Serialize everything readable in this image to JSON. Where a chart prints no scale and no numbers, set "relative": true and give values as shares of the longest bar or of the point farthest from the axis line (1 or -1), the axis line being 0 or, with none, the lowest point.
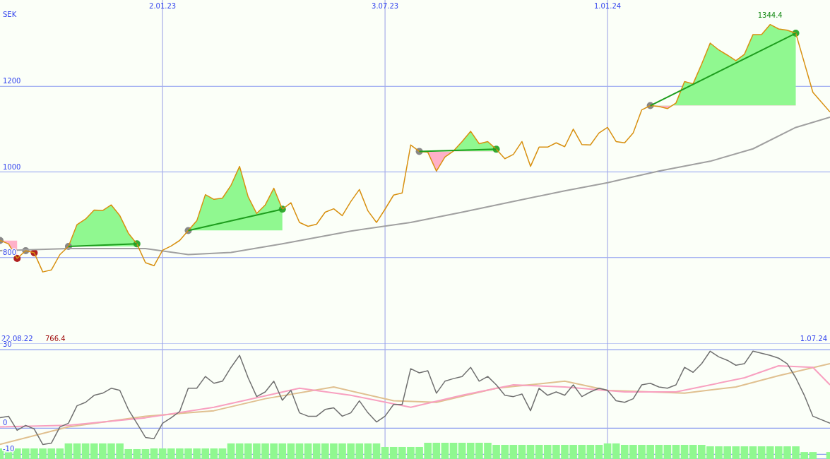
{
  "chart_data": [
    {
      "type": "line",
      "ylabel": "SEK",
      "xlim": [
        "2022-08-22",
        "2024-07-01"
      ],
      "ylim": [
        600,
        1400
      ],
      "yticks": [
        800,
        1000,
        1200
      ],
      "xticks": [
        {
          "value": "2023-01-02",
          "label": "2.01.23"
        },
        {
          "value": "2023-07-03",
          "label": "3.07.23"
        },
        {
          "value": "2024-01-01",
          "label": "1.01.24"
        }
      ],
      "grid": true,
      "annotations": [
        "22.08.22",
        "766.4",
        "1.07.24",
        {
          "text": "1344.4",
          "x": "2024-05-13",
          "y": 1344.4
        }
      ],
      "x": [
        "2022-08-22",
        "2022-08-29",
        "2022-09-05",
        "2022-09-12",
        "2022-09-19",
        "2022-09-26",
        "2022-10-03",
        "2022-10-10",
        "2022-10-17",
        "2022-10-24",
        "2022-10-31",
        "2022-11-07",
        "2022-11-14",
        "2022-11-21",
        "2022-11-28",
        "2022-12-05",
        "2022-12-12",
        "2022-12-19",
        "2022-12-26",
        "2023-01-02",
        "2023-01-09",
        "2023-01-16",
        "2023-01-23",
        "2023-01-30",
        "2023-02-06",
        "2023-02-13",
        "2023-02-20",
        "2023-02-27",
        "2023-03-06",
        "2023-03-13",
        "2023-03-20",
        "2023-03-27",
        "2023-04-03",
        "2023-04-10",
        "2023-04-17",
        "2023-04-24",
        "2023-05-01",
        "2023-05-08",
        "2023-05-15",
        "2023-05-22",
        "2023-05-29",
        "2023-06-05",
        "2023-06-12",
        "2023-06-19",
        "2023-06-26",
        "2023-07-03",
        "2023-07-10",
        "2023-07-17",
        "2023-07-24",
        "2023-07-31",
        "2023-08-07",
        "2023-08-14",
        "2023-08-21",
        "2023-08-28",
        "2023-09-04",
        "2023-09-11",
        "2023-09-18",
        "2023-09-25",
        "2023-10-02",
        "2023-10-09",
        "2023-10-16",
        "2023-10-23",
        "2023-10-30",
        "2023-11-06",
        "2023-11-13",
        "2023-11-20",
        "2023-11-27",
        "2023-12-04",
        "2023-12-11",
        "2023-12-18",
        "2023-12-25",
        "2024-01-01",
        "2024-01-08",
        "2024-01-15",
        "2024-01-22",
        "2024-01-29",
        "2024-02-05",
        "2024-02-12",
        "2024-02-19",
        "2024-02-26",
        "2024-03-04",
        "2024-03-11",
        "2024-03-18",
        "2024-03-25",
        "2024-04-01",
        "2024-04-08",
        "2024-04-15",
        "2024-04-22",
        "2024-04-29",
        "2024-05-06",
        "2024-05-13",
        "2024-05-20",
        "2024-05-27",
        "2024-06-03",
        "2024-06-10",
        "2024-06-17",
        "2024-07-01"
      ],
      "series": [
        {
          "type": "line",
          "color": "#a0a0a0",
          "x": [
            "2022-08-22",
            "2022-10-17",
            "2022-12-19",
            "2023-01-23",
            "2023-02-27",
            "2023-04-10",
            "2023-06-05",
            "2023-07-24",
            "2023-09-04",
            "2023-10-16",
            "2023-11-27",
            "2024-01-01",
            "2024-02-12",
            "2024-03-25",
            "2024-04-29",
            "2024-06-03",
            "2024-07-01"
          ],
          "values": [
            816,
            821,
            821,
            807,
            812,
            832,
            862,
            882,
            906,
            931,
            956,
            975,
            1002,
            1025,
            1054,
            1104,
            1128
          ]
        },
        {
          "color": "#d89010",
          "values": [
            840,
            832,
            798,
            816,
            811,
            766.4,
            771,
            807,
            826,
            877,
            890,
            911,
            910,
            923,
            898,
            857,
            832,
            788,
            781,
            817,
            827,
            840,
            863,
            886,
            947,
            936,
            939,
            969,
            1013,
            942,
            903,
            923,
            962,
            913,
            928,
            882,
            873,
            878,
            906,
            914,
            898,
            931,
            959,
            909,
            882,
            913,
            946,
            951,
            1063,
            1048,
            1046,
            1002,
            1035,
            1049,
            1071,
            1095,
            1066,
            1071,
            1053,
            1031,
            1041,
            1071,
            1013,
            1058,
            1058,
            1068,
            1059,
            1100,
            1064,
            1063,
            1091,
            1104,
            1071,
            1068,
            1091,
            1145,
            1155,
            1153,
            1148,
            1161,
            1211,
            1206,
            1252,
            1301,
            1285,
            1273,
            1260,
            1275,
            1321,
            1321,
            1344.4,
            1334,
            1331,
            1324,
            1255,
            1186,
            1140
          ]
        },
        {
          "type": "line",
          "color": "#1e9e1e",
          "x": [
            "2022-10-17",
            "2022-12-12",
            "2022-12-19",
            "2023-01-23",
            "2023-04-10",
            "2023-04-17",
            "2023-07-31",
            "2023-10-02",
            "2023-10-09",
            "2024-02-05",
            "2024-06-03"
          ],
          "values": [
            826,
            832,
            null,
            863,
            913,
            null,
            1048,
            1053,
            null,
            1155,
            1324
          ]
        },
        {
          "type": "scatter",
          "color": "#888888",
          "x": [
            "2022-08-22",
            "2022-09-12",
            "2022-10-17",
            "2023-01-23",
            "2023-07-31",
            "2024-02-05"
          ],
          "values": [
            840,
            816,
            826,
            863,
            1048,
            1155
          ]
        },
        {
          "type": "scatter",
          "color": "#33aa33",
          "x": [
            "2022-12-12",
            "2023-04-10",
            "2023-10-02",
            "2024-06-03"
          ],
          "values": [
            832,
            913,
            1053,
            1324
          ]
        },
        {
          "type": "scatter",
          "color": "#b02020",
          "x": [
            "2022-09-05",
            "2022-09-19"
          ],
          "values": [
            798,
            811
          ]
        }
      ]
    },
    {
      "type": "line",
      "xlim": [
        "2022-08-22",
        "2024-07-01"
      ],
      "ylim": [
        -11.5,
        32
      ],
      "yticks": [
        -10,
        0,
        30
      ],
      "xticks": [
        "2023-01-02",
        "2023-07-03",
        "2024-01-01"
      ],
      "grid": true,
      "tick_labels": "y",
      "x": [
        "2022-08-22",
        "2022-08-29",
        "2022-09-05",
        "2022-09-12",
        "2022-09-19",
        "2022-09-26",
        "2022-10-03",
        "2022-10-10",
        "2022-10-17",
        "2022-10-24",
        "2022-10-31",
        "2022-11-07",
        "2022-11-14",
        "2022-11-21",
        "2022-11-28",
        "2022-12-05",
        "2022-12-12",
        "2022-12-19",
        "2022-12-26",
        "2023-01-02",
        "2023-01-09",
        "2023-01-16",
        "2023-01-23",
        "2023-01-30",
        "2023-02-06",
        "2023-02-13",
        "2023-02-20",
        "2023-02-27",
        "2023-03-06",
        "2023-03-13",
        "2023-03-20",
        "2023-03-27",
        "2023-04-03",
        "2023-04-10",
        "2023-04-17",
        "2023-04-24",
        "2023-05-01",
        "2023-05-08",
        "2023-05-15",
        "2023-05-22",
        "2023-05-29",
        "2023-06-05",
        "2023-06-12",
        "2023-06-19",
        "2023-06-26",
        "2023-07-03",
        "2023-07-10",
        "2023-07-17",
        "2023-07-24",
        "2023-07-31",
        "2023-08-07",
        "2023-08-14",
        "2023-08-21",
        "2023-08-28",
        "2023-09-04",
        "2023-09-11",
        "2023-09-18",
        "2023-09-25",
        "2023-10-02",
        "2023-10-09",
        "2023-10-16",
        "2023-10-23",
        "2023-10-30",
        "2023-11-06",
        "2023-11-13",
        "2023-11-20",
        "2023-11-27",
        "2023-12-04",
        "2023-12-11",
        "2023-12-18",
        "2023-12-25",
        "2024-01-01",
        "2024-01-08",
        "2024-01-15",
        "2024-01-22",
        "2024-01-29",
        "2024-02-05",
        "2024-02-12",
        "2024-02-19",
        "2024-02-26",
        "2024-03-04",
        "2024-03-11",
        "2024-03-18",
        "2024-03-25",
        "2024-04-01",
        "2024-04-08",
        "2024-04-15",
        "2024-04-22",
        "2024-04-29",
        "2024-05-06",
        "2024-05-13",
        "2024-05-20",
        "2024-05-27",
        "2024-06-03",
        "2024-06-10",
        "2024-06-17",
        "2024-07-01"
      ],
      "series": [
        {
          "type": "line",
          "color": "#e0c090",
          "x": [
            "2022-08-22",
            "2022-10-17",
            "2022-12-19",
            "2023-02-13",
            "2023-03-27",
            "2023-05-22",
            "2023-07-10",
            "2023-08-14",
            "2023-10-02",
            "2023-11-27",
            "2024-01-01",
            "2024-03-04",
            "2024-04-15",
            "2024-05-20",
            "2024-07-01"
          ],
          "values": [
            -6.2,
            0.5,
            4.6,
            6.7,
            11.3,
            15.8,
            10.5,
            9.9,
            15.3,
            18.0,
            14.5,
            13.4,
            15.8,
            20.1,
            24.7
          ]
        },
        {
          "type": "line",
          "color": "#f8a0c0",
          "x": [
            "2022-08-22",
            "2022-10-17",
            "2022-12-19",
            "2023-02-13",
            "2023-04-24",
            "2023-06-05",
            "2023-07-24",
            "2023-09-04",
            "2023-10-16",
            "2023-11-27",
            "2024-01-15",
            "2024-02-26",
            "2024-04-22",
            "2024-05-20",
            "2024-06-17",
            "2024-07-01"
          ],
          "values": [
            0.5,
            1.1,
            4.0,
            8.0,
            15.3,
            12.6,
            8.0,
            12.6,
            16.6,
            15.8,
            13.9,
            13.9,
            19.3,
            23.9,
            23.3,
            16.6
          ]
        },
        {
          "color": "#707070",
          "values": [
            4.0,
            4.6,
            -0.8,
            1.1,
            -0.3,
            -6.2,
            -5.7,
            0.5,
            1.9,
            8.6,
            9.9,
            12.6,
            13.4,
            15.3,
            14.5,
            7.2,
            1.9,
            -3.5,
            -4.0,
            1.9,
            4.0,
            6.4,
            15.3,
            15.3,
            19.8,
            17.2,
            18.0,
            23.3,
            27.9,
            19.3,
            12.1,
            13.9,
            18.0,
            10.7,
            14.5,
            5.9,
            4.6,
            4.6,
            7.2,
            7.8,
            4.6,
            5.9,
            10.5,
            5.9,
            2.4,
            4.6,
            9.1,
            9.1,
            22.8,
            21.2,
            22.0,
            13.4,
            18.0,
            19.0,
            19.8,
            23.3,
            18.0,
            19.8,
            16.6,
            12.6,
            12.1,
            13.1,
            6.7,
            15.3,
            12.6,
            13.9,
            12.6,
            16.6,
            12.1,
            13.9,
            15.3,
            14.5,
            10.5,
            9.9,
            11.3,
            16.6,
            17.2,
            15.8,
            15.3,
            16.6,
            23.3,
            21.4,
            24.7,
            29.5,
            27.3,
            26.0,
            24.1,
            24.7,
            29.5,
            28.7,
            27.9,
            26.8,
            24.7,
            19.3,
            12.6,
            4.6,
            1.9
          ]
        }
      ]
    },
    {
      "type": "bar",
      "relative": true,
      "tick_labels": false,
      "xlim": [
        "2022-08-22",
        "2024-07-01"
      ],
      "color": "#90f890",
      "x": [
        "2022-08-22",
        "2022-08-29",
        "2022-09-05",
        "2022-09-12",
        "2022-09-19",
        "2022-09-26",
        "2022-10-03",
        "2022-10-10",
        "2022-10-17",
        "2022-10-24",
        "2022-10-31",
        "2022-11-07",
        "2022-11-14",
        "2022-11-21",
        "2022-11-28",
        "2022-12-05",
        "2022-12-12",
        "2022-12-19",
        "2022-12-26",
        "2023-01-02",
        "2023-01-09",
        "2023-01-16",
        "2023-01-23",
        "2023-01-30",
        "2023-02-06",
        "2023-02-13",
        "2023-02-20",
        "2023-02-27",
        "2023-03-06",
        "2023-03-13",
        "2023-03-20",
        "2023-03-27",
        "2023-04-03",
        "2023-04-10",
        "2023-04-17",
        "2023-04-24",
        "2023-05-01",
        "2023-05-08",
        "2023-05-15",
        "2023-05-22",
        "2023-05-29",
        "2023-06-05",
        "2023-06-12",
        "2023-06-19",
        "2023-06-26",
        "2023-07-03",
        "2023-07-10",
        "2023-07-17",
        "2023-07-24",
        "2023-07-31",
        "2023-08-07",
        "2023-08-14",
        "2023-08-21",
        "2023-08-28",
        "2023-09-04",
        "2023-09-11",
        "2023-09-18",
        "2023-09-25",
        "2023-10-02",
        "2023-10-09",
        "2023-10-16",
        "2023-10-23",
        "2023-10-30",
        "2023-11-06",
        "2023-11-13",
        "2023-11-20",
        "2023-11-27",
        "2023-12-04",
        "2023-12-11",
        "2023-12-18",
        "2023-12-25",
        "2024-01-01",
        "2024-01-08",
        "2024-01-15",
        "2024-01-22",
        "2024-01-29",
        "2024-02-05",
        "2024-02-12",
        "2024-02-19",
        "2024-02-26",
        "2024-03-04",
        "2024-03-11",
        "2024-03-18",
        "2024-03-25",
        "2024-04-01",
        "2024-04-08",
        "2024-04-15",
        "2024-04-22",
        "2024-04-29",
        "2024-05-06",
        "2024-05-13",
        "2024-05-20",
        "2024-05-27",
        "2024-06-03",
        "2024-06-10",
        "2024-06-17",
        "2024-07-01"
      ],
      "values": [
        0.65,
        0.65,
        0.65,
        0.65,
        0.65,
        0.65,
        0.65,
        0.65,
        0.96,
        0.96,
        0.96,
        0.96,
        0.96,
        0.96,
        0.96,
        0.61,
        0.61,
        0.61,
        0.65,
        0.65,
        0.65,
        0.65,
        0.65,
        0.65,
        0.65,
        0.65,
        0.65,
        0.96,
        0.96,
        0.96,
        0.96,
        0.96,
        0.96,
        0.96,
        0.96,
        0.96,
        0.96,
        0.96,
        0.96,
        0.96,
        0.96,
        0.96,
        0.96,
        0.96,
        0.96,
        0.74,
        0.74,
        0.74,
        0.74,
        0.74,
        1,
        1,
        1,
        1,
        1,
        1,
        1,
        1,
        0.87,
        0.87,
        0.87,
        0.87,
        0.87,
        0.87,
        0.87,
        0.87,
        0.87,
        0.87,
        0.87,
        0.87,
        0.87,
        0.96,
        0.96,
        0.87,
        0.87,
        0.87,
        0.87,
        0.87,
        0.87,
        0.87,
        0.87,
        0.87,
        0.87,
        0.78,
        0.78,
        0.78,
        0.78,
        0.78,
        0.78,
        0.78,
        0.78,
        0.78,
        0.78,
        0.78,
        0.43,
        0.43,
        0.43
      ]
    }
  ]
}
